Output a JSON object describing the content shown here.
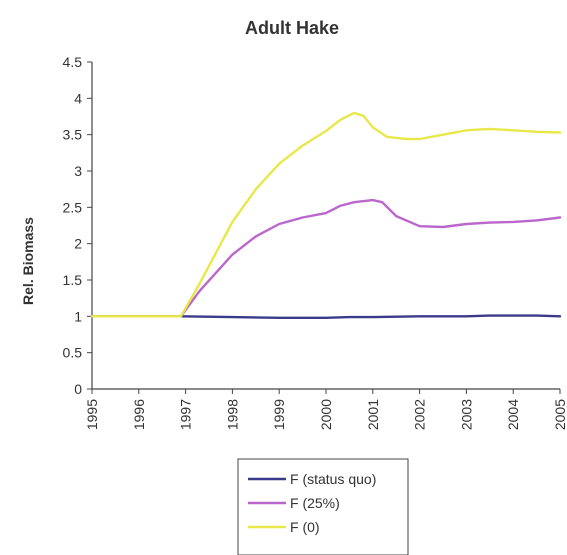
{
  "chart_data": {
    "type": "line",
    "title": "Adult Hake",
    "xlabel": "",
    "ylabel": "Rel. Biomass",
    "xlim": [
      1995,
      2005
    ],
    "ylim": [
      0,
      4.5
    ],
    "x_ticks": [
      "1995",
      "1996",
      "1997",
      "1998",
      "1999",
      "2000",
      "2001",
      "2002",
      "2003",
      "2004",
      "2005"
    ],
    "y_ticks": [
      "0",
      "0.5",
      "1",
      "1.5",
      "2",
      "2.5",
      "3",
      "3.5",
      "4",
      "4.5"
    ],
    "grid": false,
    "legend_position": "bottom",
    "series": [
      {
        "name": "F (status quo)",
        "color": "#3a3a8c",
        "x": [
          1995,
          1996,
          1996.9,
          1998,
          1999,
          2000,
          2000.5,
          2001,
          2002,
          2002.5,
          2003,
          2003.5,
          2004,
          2004.5,
          2005
        ],
        "y": [
          1.0,
          1.0,
          1.0,
          0.99,
          0.98,
          0.98,
          0.99,
          0.99,
          1.0,
          1.0,
          1.0,
          1.01,
          1.01,
          1.01,
          1.0
        ]
      },
      {
        "name": "F (25%)",
        "color": "#bb66cc",
        "x": [
          1995,
          1996,
          1996.9,
          1997.3,
          1998,
          1998.5,
          1999,
          1999.5,
          2000,
          2000.3,
          2000.6,
          2001,
          2001.2,
          2001.5,
          2002,
          2002.5,
          2003,
          2003.5,
          2004,
          2004.5,
          2005
        ],
        "y": [
          1.0,
          1.0,
          1.0,
          1.35,
          1.85,
          2.1,
          2.27,
          2.36,
          2.42,
          2.52,
          2.57,
          2.6,
          2.57,
          2.38,
          2.24,
          2.23,
          2.27,
          2.29,
          2.3,
          2.32,
          2.36
        ],
        "x_marker": null
      },
      {
        "name": "F (0)",
        "color": "#e8e84a",
        "x": [
          1995,
          1996,
          1996.9,
          1997.3,
          1998,
          1998.5,
          1999,
          1999.5,
          2000,
          2000.3,
          2000.6,
          2000.8,
          2001,
          2001.3,
          2001.7,
          2002,
          2002.5,
          2003,
          2003.5,
          2004,
          2004.5,
          2005
        ],
        "y": [
          1.0,
          1.0,
          1.0,
          1.45,
          2.3,
          2.75,
          3.1,
          3.35,
          3.55,
          3.7,
          3.8,
          3.76,
          3.6,
          3.47,
          3.44,
          3.44,
          3.5,
          3.56,
          3.58,
          3.56,
          3.54,
          3.53
        ]
      }
    ]
  }
}
